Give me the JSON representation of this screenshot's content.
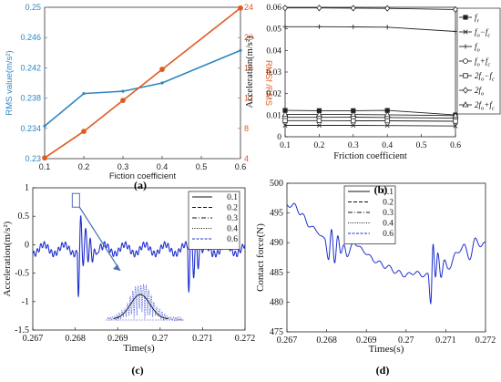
{
  "panels": {
    "a": {
      "label": "(a)"
    },
    "b": {
      "label": "(b)"
    },
    "c": {
      "label": "(c)"
    },
    "d": {
      "label": "(d)"
    }
  },
  "chart_data": [
    {
      "id": "a",
      "type": "line",
      "xlabel": "Fiction coefficient",
      "ylabel": "RMS value(m/s²)",
      "ylabel_right": "RMSf /RMS",
      "x": [
        0.1,
        0.2,
        0.3,
        0.4,
        0.6
      ],
      "xlim": [
        0.1,
        0.6
      ],
      "xticks": [
        "0.1",
        "0.2",
        "0.3",
        "0.4",
        "0.5",
        "0.6"
      ],
      "ylim": [
        0.23,
        0.25
      ],
      "yticks": [
        "0.23",
        "0.234",
        "0.238",
        "0.242",
        "0.246",
        "0.25"
      ],
      "ylim_right": [
        4,
        24
      ],
      "yticks_right": [
        "4",
        "8",
        "12",
        "16",
        "20",
        "24"
      ],
      "grid": false,
      "series": [
        {
          "values": [
            0.2343,
            0.2386,
            0.2389,
            0.24,
            0.2443
          ],
          "color": "#2e86c1",
          "axis": "left",
          "marker": "dot"
        },
        {
          "values": [
            4.1,
            7.6,
            11.7,
            15.8,
            23.9
          ],
          "color": "#e05a1e",
          "axis": "right",
          "marker": "circle"
        }
      ]
    },
    {
      "id": "b",
      "type": "line",
      "xlabel": "Friction coefficient",
      "ylabel": "Acceleration(m/s²)",
      "x": [
        0.1,
        0.2,
        0.3,
        0.4,
        0.6
      ],
      "xlim": [
        0.1,
        0.6
      ],
      "xticks": [
        "0.1",
        "0.2",
        "0.3",
        "0.4",
        "0.5",
        "0.6"
      ],
      "ylim": [
        0,
        0.06
      ],
      "yticks": [
        "0",
        "0.01",
        "0.02",
        "0.03",
        "0.04",
        "0.05",
        "0.06"
      ],
      "grid": false,
      "legend_position": "right-outside",
      "series": [
        {
          "name": "fr",
          "values": [
            0.0122,
            0.0121,
            0.0121,
            0.0122,
            0.0101
          ],
          "marker": "filled-square"
        },
        {
          "name": "fo-fc",
          "values": [
            0.0053,
            0.0053,
            0.0053,
            0.0052,
            0.005
          ],
          "marker": "x"
        },
        {
          "name": "fo",
          "values": [
            0.051,
            0.051,
            0.0509,
            0.0508,
            0.0488
          ],
          "marker": "plus"
        },
        {
          "name": "fo+fc",
          "values": [
            0.009,
            0.009,
            0.0091,
            0.0089,
            0.0086
          ],
          "marker": "circle"
        },
        {
          "name": "2fo-fc",
          "values": [
            0.0075,
            0.0075,
            0.0074,
            0.0074,
            0.0072
          ],
          "marker": "square"
        },
        {
          "name": "2fo",
          "values": [
            0.0597,
            0.0597,
            0.0596,
            0.0595,
            0.059
          ],
          "marker": "diamond"
        },
        {
          "name": "2fo+fc",
          "values": [
            0.0104,
            0.0103,
            0.0103,
            0.0102,
            0.0098
          ],
          "marker": "triangle"
        }
      ]
    },
    {
      "id": "c",
      "type": "line",
      "xlabel": "Time(s)",
      "ylabel": "Acceleration(m/s²)",
      "xlim": [
        0.267,
        0.272
      ],
      "xticks": [
        "0.267",
        "0.268",
        "0.269",
        "0.27",
        "0.271",
        "0.272"
      ],
      "ylim": [
        -1.5,
        1
      ],
      "yticks": [
        "-1.5",
        "-1",
        "-0.5",
        "0",
        "0.5",
        "1"
      ],
      "grid": false,
      "legend_position": "top-right",
      "legend": [
        "0.1",
        "0.2",
        "0.3",
        "0.4",
        "0.6"
      ],
      "color": "#1f2fcf"
    },
    {
      "id": "d",
      "type": "line",
      "xlabel": "Times(s)",
      "ylabel": "Contact force(N)",
      "xlim": [
        0.267,
        0.272
      ],
      "xticks": [
        "0.267",
        "0.268",
        "0.269",
        "0.27",
        "0.271",
        "0.272"
      ],
      "ylim": [
        475,
        500
      ],
      "yticks": [
        "475",
        "480",
        "485",
        "490",
        "495",
        "500"
      ],
      "grid": false,
      "legend_position": "top-right",
      "legend": [
        "0.1",
        "0.2",
        "0.3",
        "0.4",
        "0.6"
      ],
      "color": "#1f2fcf"
    }
  ]
}
